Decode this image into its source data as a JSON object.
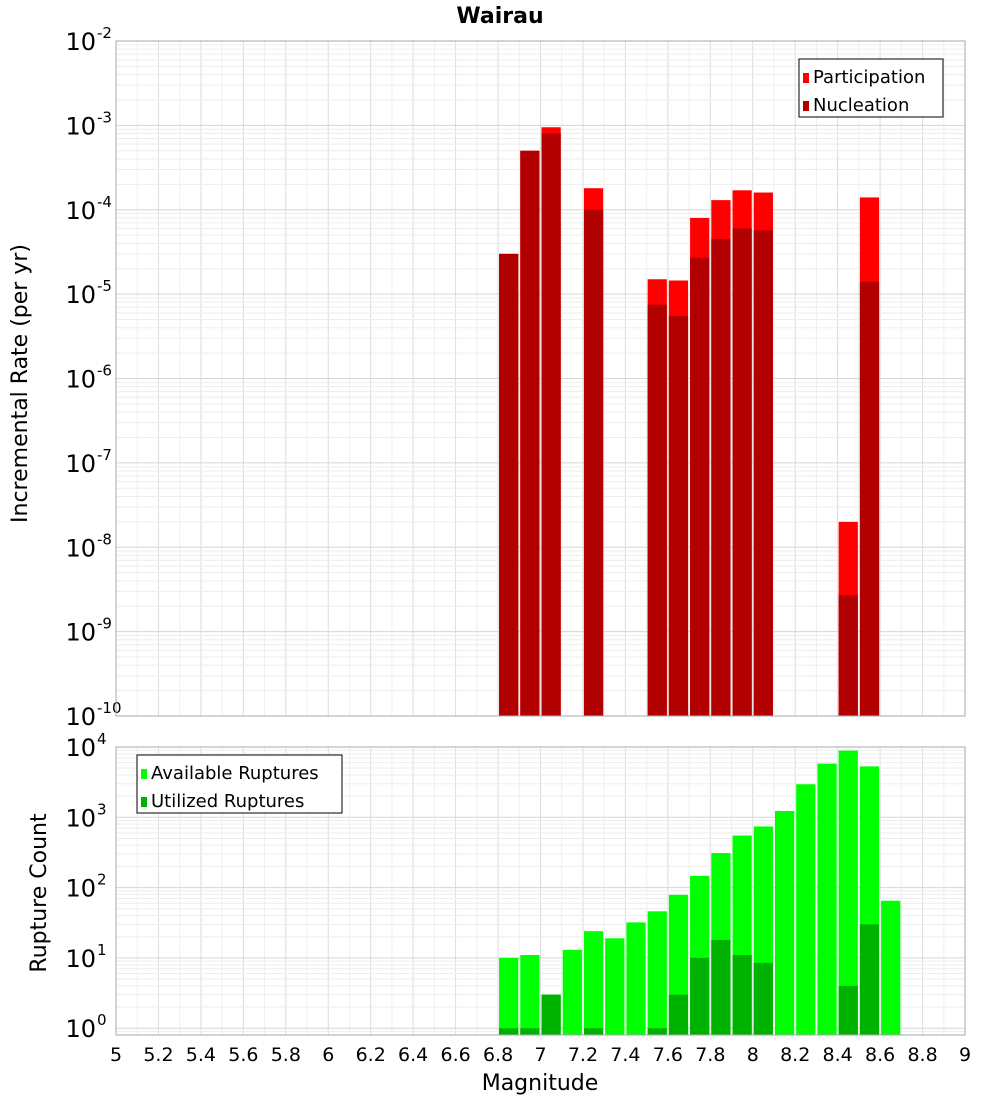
{
  "chart_data": [
    {
      "type": "bar",
      "title": "Wairau",
      "xlabel": "",
      "ylabel": "Incremental Rate (per yr)",
      "yscale": "log",
      "ylim": [
        1e-10,
        0.01
      ],
      "xlim": [
        5,
        9
      ],
      "bin_width": 0.1,
      "y_ticks": [
        {
          "mantissa": "10",
          "exp": "-10"
        },
        {
          "mantissa": "10",
          "exp": "-9"
        },
        {
          "mantissa": "10",
          "exp": "-8"
        },
        {
          "mantissa": "10",
          "exp": "-7"
        },
        {
          "mantissa": "10",
          "exp": "-6"
        },
        {
          "mantissa": "10",
          "exp": "-5"
        },
        {
          "mantissa": "10",
          "exp": "-4"
        },
        {
          "mantissa": "10",
          "exp": "-3"
        },
        {
          "mantissa": "10",
          "exp": "-2"
        }
      ],
      "legend": {
        "position": "top-right",
        "entries": [
          "Participation",
          "Nucleation"
        ]
      },
      "grid": true,
      "series": [
        {
          "name": "Participation",
          "color": "#ff0000",
          "x": [
            6.85,
            6.95,
            7.05,
            7.25,
            7.55,
            7.65,
            7.75,
            7.85,
            7.95,
            8.05,
            8.45,
            8.55
          ],
          "values": [
            3e-05,
            0.0005,
            0.00095,
            0.00018,
            1.5e-05,
            1.45e-05,
            8e-05,
            0.00013,
            0.00017,
            0.00016,
            2e-08,
            0.00014
          ]
        },
        {
          "name": "Nucleation",
          "color": "#b20000",
          "x": [
            6.85,
            6.95,
            7.05,
            7.25,
            7.55,
            7.65,
            7.75,
            7.85,
            7.95,
            8.05,
            8.45,
            8.55
          ],
          "values": [
            3e-05,
            0.0005,
            0.0008,
            0.0001,
            7.5e-06,
            5.5e-06,
            2.7e-05,
            4.5e-05,
            6e-05,
            5.7e-05,
            2.7e-09,
            1.4e-05
          ]
        }
      ]
    },
    {
      "type": "bar",
      "title": "",
      "xlabel": "Magnitude",
      "ylabel": "Rupture Count",
      "yscale": "log",
      "ylim": [
        0.8,
        10000
      ],
      "xlim": [
        5,
        9
      ],
      "bin_width": 0.1,
      "x_ticks": [
        "5",
        "5.2",
        "5.4",
        "5.6",
        "5.8",
        "6",
        "6.2",
        "6.4",
        "6.6",
        "6.8",
        "7",
        "7.2",
        "7.4",
        "7.6",
        "7.8",
        "8",
        "8.2",
        "8.4",
        "8.6",
        "8.8",
        "9"
      ],
      "y_ticks": [
        {
          "mantissa": "10",
          "exp": "0"
        },
        {
          "mantissa": "10",
          "exp": "1"
        },
        {
          "mantissa": "10",
          "exp": "2"
        },
        {
          "mantissa": "10",
          "exp": "3"
        },
        {
          "mantissa": "10",
          "exp": "4"
        }
      ],
      "legend": {
        "position": "top-left",
        "entries": [
          "Available Ruptures",
          "Utilized Ruptures"
        ]
      },
      "grid": true,
      "series": [
        {
          "name": "Available Ruptures",
          "color": "#00ff00",
          "x": [
            6.85,
            6.95,
            7.05,
            7.15,
            7.25,
            7.35,
            7.45,
            7.55,
            7.65,
            7.75,
            7.85,
            7.95,
            8.05,
            8.15,
            8.25,
            8.35,
            8.45,
            8.55,
            8.65
          ],
          "values": [
            10,
            11,
            3,
            13,
            24,
            19,
            32,
            46,
            79,
            147,
            310,
            550,
            740,
            1230,
            2950,
            5800,
            8900,
            5300,
            65
          ]
        },
        {
          "name": "Utilized Ruptures",
          "color": "#00b200",
          "x": [
            6.85,
            6.95,
            7.05,
            7.25,
            7.55,
            7.65,
            7.75,
            7.85,
            7.95,
            8.05,
            8.45,
            8.55
          ],
          "values": [
            1,
            1,
            3,
            1,
            1,
            3,
            10,
            18,
            11,
            8.5,
            4,
            30
          ]
        }
      ]
    }
  ]
}
